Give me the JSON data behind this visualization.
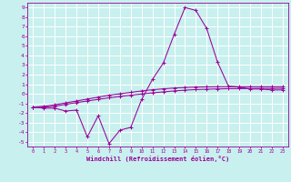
{
  "xlabel": "Windchill (Refroidissement éolien,°C)",
  "bg_color": "#c8f0ee",
  "grid_color": "#ffffff",
  "line_color": "#990099",
  "x_values": [
    0,
    1,
    2,
    3,
    4,
    5,
    6,
    7,
    8,
    9,
    10,
    11,
    12,
    13,
    14,
    15,
    16,
    17,
    18,
    19,
    20,
    21,
    22,
    23
  ],
  "line1": [
    -1.4,
    -1.5,
    -1.5,
    -1.8,
    -1.7,
    -4.5,
    -2.3,
    -5.2,
    -3.8,
    -3.5,
    -0.6,
    1.5,
    3.2,
    6.2,
    9.0,
    8.7,
    6.8,
    3.3,
    0.8,
    0.7,
    0.5,
    0.5,
    0.4,
    0.4
  ],
  "line2": [
    -1.4,
    -1.3,
    -1.15,
    -0.95,
    -0.75,
    -0.55,
    -0.35,
    -0.15,
    0.0,
    0.15,
    0.3,
    0.42,
    0.52,
    0.6,
    0.66,
    0.7,
    0.72,
    0.74,
    0.74,
    0.74,
    0.74,
    0.74,
    0.74,
    0.74
  ],
  "line3": [
    -1.4,
    -1.4,
    -1.3,
    -1.1,
    -0.92,
    -0.75,
    -0.58,
    -0.42,
    -0.28,
    -0.15,
    -0.02,
    0.1,
    0.2,
    0.3,
    0.38,
    0.44,
    0.48,
    0.51,
    0.53,
    0.54,
    0.55,
    0.56,
    0.56,
    0.57
  ],
  "xlim": [
    -0.5,
    23.5
  ],
  "ylim": [
    -5.5,
    9.5
  ],
  "xticks": [
    0,
    1,
    2,
    3,
    4,
    5,
    6,
    7,
    8,
    9,
    10,
    11,
    12,
    13,
    14,
    15,
    16,
    17,
    18,
    19,
    20,
    21,
    22,
    23
  ],
  "yticks": [
    -5,
    -4,
    -3,
    -2,
    -1,
    0,
    1,
    2,
    3,
    4,
    5,
    6,
    7,
    8,
    9
  ]
}
